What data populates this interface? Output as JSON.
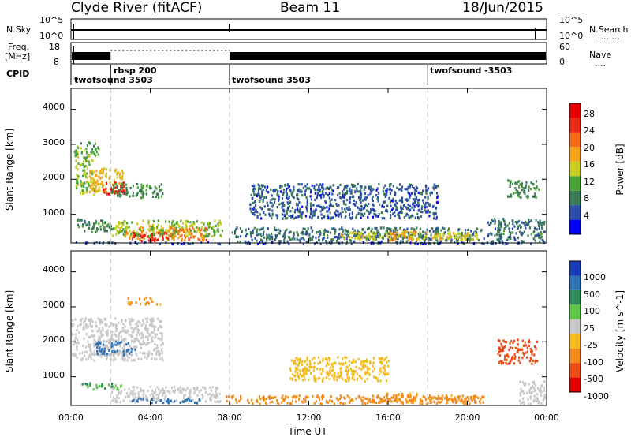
{
  "header": {
    "station": "Clyde River (fitACF)",
    "beam": "Beam 11",
    "date": "18/Jun/2015"
  },
  "panels": {
    "nsky_label": "N.Sky",
    "nsearch_label": "N.Search",
    "nsearch_dots": "........",
    "freq_label_1": "Freq.",
    "freq_label_2": "[MHz]",
    "nave_label": "Nave",
    "nave_dots": "....",
    "cpid_label": "CPID",
    "nsky_ticks": [
      "10^5",
      "10^0"
    ],
    "nsearch_ticks": [
      "10^5",
      "10^0"
    ],
    "freq_ticks": [
      "18",
      "8"
    ],
    "nave_ticks": [
      "60",
      "0"
    ],
    "cpid_entries": [
      {
        "name": "twofsound 3503",
        "start_hour": 0.0
      },
      {
        "name": "rbsp 200",
        "start_hour": 2.0
      },
      {
        "name": "twofsound 3503",
        "start_hour": 8.0
      },
      {
        "name": "twofsound -3503",
        "start_hour": 18.0
      }
    ]
  },
  "colors": {
    "power_scale": [
      "#0000ff",
      "#2b4fa8",
      "#3a7b56",
      "#4aa335",
      "#c8cd1e",
      "#f6a31a",
      "#f46a16",
      "#ec2a13",
      "#e80000"
    ],
    "velocity_scale": [
      "#1b3cba",
      "#2f72b5",
      "#2e8a58",
      "#5ec846",
      "#c8c8c8",
      "#f5ba1d",
      "#f38b1a",
      "#ea4d16",
      "#e50000"
    ]
  },
  "chart_data": [
    {
      "type": "heatmap",
      "title": "",
      "xlabel": "Time UT",
      "ylabel": "Slant Range [km]",
      "xlim": [
        0,
        24
      ],
      "ylim": [
        180,
        4600
      ],
      "x_ticks": [
        "00:00",
        "04:00",
        "08:00",
        "12:00",
        "16:00",
        "20:00",
        "00:00"
      ],
      "y_ticks": [
        "1000",
        "2000",
        "3000",
        "4000"
      ],
      "colorbar_label": "Power [dB]",
      "colorbar_ticks": [
        "4",
        "8",
        "12",
        "16",
        "20",
        "24",
        "28"
      ],
      "colorbar_range": [
        0,
        32
      ],
      "regions": [
        {
          "t0": 0.0,
          "t1": 24.0,
          "r0": 180,
          "r1": 240,
          "value": 5
        },
        {
          "t0": 0.2,
          "t1": 1.2,
          "r0": 1600,
          "r1": 2600,
          "value": 14
        },
        {
          "t0": 0.9,
          "t1": 2.6,
          "r0": 1650,
          "r1": 2350,
          "value": 18
        },
        {
          "t0": 1.6,
          "t1": 2.8,
          "r0": 1600,
          "r1": 1950,
          "value": 28
        },
        {
          "t0": 2.0,
          "t1": 4.6,
          "r0": 1500,
          "r1": 1900,
          "value": 10
        },
        {
          "t0": 0.1,
          "t1": 1.4,
          "r0": 2600,
          "r1": 3100,
          "value": 12
        },
        {
          "t0": 2.7,
          "t1": 5.0,
          "r0": 300,
          "r1": 700,
          "value": 20
        },
        {
          "t0": 3.0,
          "t1": 4.9,
          "r0": 250,
          "r1": 520,
          "value": 28
        },
        {
          "t0": 2.0,
          "t1": 7.6,
          "r0": 400,
          "r1": 850,
          "value": 14
        },
        {
          "t0": 5.0,
          "t1": 6.8,
          "r0": 280,
          "r1": 650,
          "value": 22
        },
        {
          "t0": 0.3,
          "t1": 2.0,
          "r0": 500,
          "r1": 900,
          "value": 10
        },
        {
          "t0": 8.0,
          "t1": 20.8,
          "r0": 250,
          "r1": 650,
          "value": 8
        },
        {
          "t0": 13.5,
          "t1": 20.5,
          "r0": 300,
          "r1": 520,
          "value": 16
        },
        {
          "t0": 16.0,
          "t1": 17.5,
          "r0": 280,
          "r1": 560,
          "value": 20
        },
        {
          "t0": 18.3,
          "t1": 20.0,
          "r0": 280,
          "r1": 480,
          "value": 18
        },
        {
          "t0": 21.0,
          "t1": 23.9,
          "r0": 250,
          "r1": 900,
          "value": 8
        },
        {
          "t0": 9.0,
          "t1": 18.5,
          "r0": 900,
          "r1": 1900,
          "value": 6
        },
        {
          "t0": 22.0,
          "t1": 23.6,
          "r0": 1500,
          "r1": 2000,
          "value": 10
        }
      ]
    },
    {
      "type": "heatmap",
      "title": "",
      "xlabel": "Time UT",
      "ylabel": "Slant Range [km]",
      "xlim": [
        0,
        24
      ],
      "ylim": [
        180,
        4600
      ],
      "x_ticks": [
        "00:00",
        "04:00",
        "08:00",
        "12:00",
        "16:00",
        "20:00",
        "00:00"
      ],
      "y_ticks": [
        "1000",
        "2000",
        "3000",
        "4000"
      ],
      "colorbar_label": "Velocity [m s^-1]",
      "colorbar_ticks": [
        "1000",
        "500",
        "100",
        "25",
        "-25",
        "-100",
        "-500",
        "-1000"
      ],
      "regions": [
        {
          "t0": 0.0,
          "t1": 4.6,
          "r0": 1500,
          "r1": 2700,
          "value": 0
        },
        {
          "t0": 1.2,
          "t1": 3.2,
          "r0": 1650,
          "r1": 2050,
          "value": 150
        },
        {
          "t0": 0.5,
          "t1": 2.5,
          "r0": 650,
          "r1": 850,
          "value": 60
        },
        {
          "t0": 2.0,
          "t1": 7.5,
          "r0": 300,
          "r1": 750,
          "value": 0
        },
        {
          "t0": 3.0,
          "t1": 6.5,
          "r0": 280,
          "r1": 420,
          "value": 150
        },
        {
          "t0": 7.8,
          "t1": 20.8,
          "r0": 250,
          "r1": 500,
          "value": -150
        },
        {
          "t0": 15.5,
          "t1": 17.5,
          "r0": 280,
          "r1": 560,
          "value": -120
        },
        {
          "t0": 18.0,
          "t1": 20.5,
          "r0": 280,
          "r1": 500,
          "value": -130
        },
        {
          "t0": 2.8,
          "t1": 4.5,
          "r0": 3100,
          "r1": 3300,
          "value": -120
        },
        {
          "t0": 21.5,
          "t1": 23.5,
          "r0": 1400,
          "r1": 2100,
          "value": -300
        },
        {
          "t0": 22.5,
          "t1": 23.9,
          "r0": 250,
          "r1": 900,
          "value": 0
        },
        {
          "t0": 11.0,
          "t1": 16.0,
          "r0": 900,
          "r1": 1600,
          "value": -50
        }
      ]
    }
  ]
}
